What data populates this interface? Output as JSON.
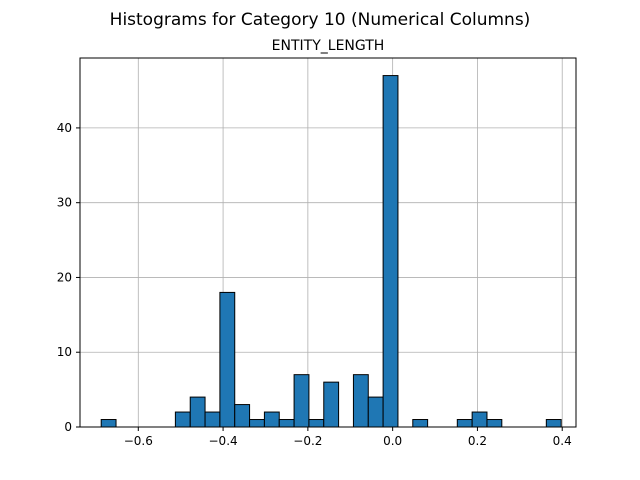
{
  "chart_data": {
    "type": "bar",
    "suptitle": "Histograms for Category 10 (Numerical Columns)",
    "title": "ENTITY_LENGTH",
    "xlabel": "",
    "ylabel": "",
    "xlim": [
      -0.7375,
      0.4325
    ],
    "ylim": [
      0,
      49.35
    ],
    "grid": true,
    "bar_color": "#1f77b4",
    "edge_color": "#000000",
    "bin_edges": [
      -0.6875,
      -0.6525,
      -0.6175,
      -0.5825,
      -0.5475,
      -0.5125,
      -0.4775,
      -0.4425,
      -0.4075,
      -0.3725,
      -0.3375,
      -0.3025,
      -0.2675,
      -0.2325,
      -0.1975,
      -0.1625,
      -0.1275,
      -0.0925,
      -0.0575,
      -0.0225,
      0.0125,
      0.0475,
      0.0825,
      0.1175,
      0.1525,
      0.1875,
      0.2225,
      0.2575,
      0.2925,
      0.3275,
      0.3625,
      0.3975
    ],
    "counts": [
      1,
      0,
      0,
      0,
      0,
      2,
      4,
      2,
      18,
      3,
      1,
      2,
      1,
      7,
      1,
      6,
      0,
      7,
      4,
      47,
      0,
      1,
      0,
      0,
      1,
      2,
      1,
      0,
      0,
      0,
      1
    ],
    "x_ticks": [
      -0.6,
      -0.4,
      -0.2,
      0.0,
      0.2,
      0.4
    ],
    "x_tick_labels": [
      "−0.6",
      "−0.4",
      "−0.2",
      "0.0",
      "0.2",
      "0.4"
    ],
    "y_ticks": [
      0,
      10,
      20,
      30,
      40
    ],
    "y_tick_labels": [
      "0",
      "10",
      "20",
      "30",
      "40"
    ]
  }
}
